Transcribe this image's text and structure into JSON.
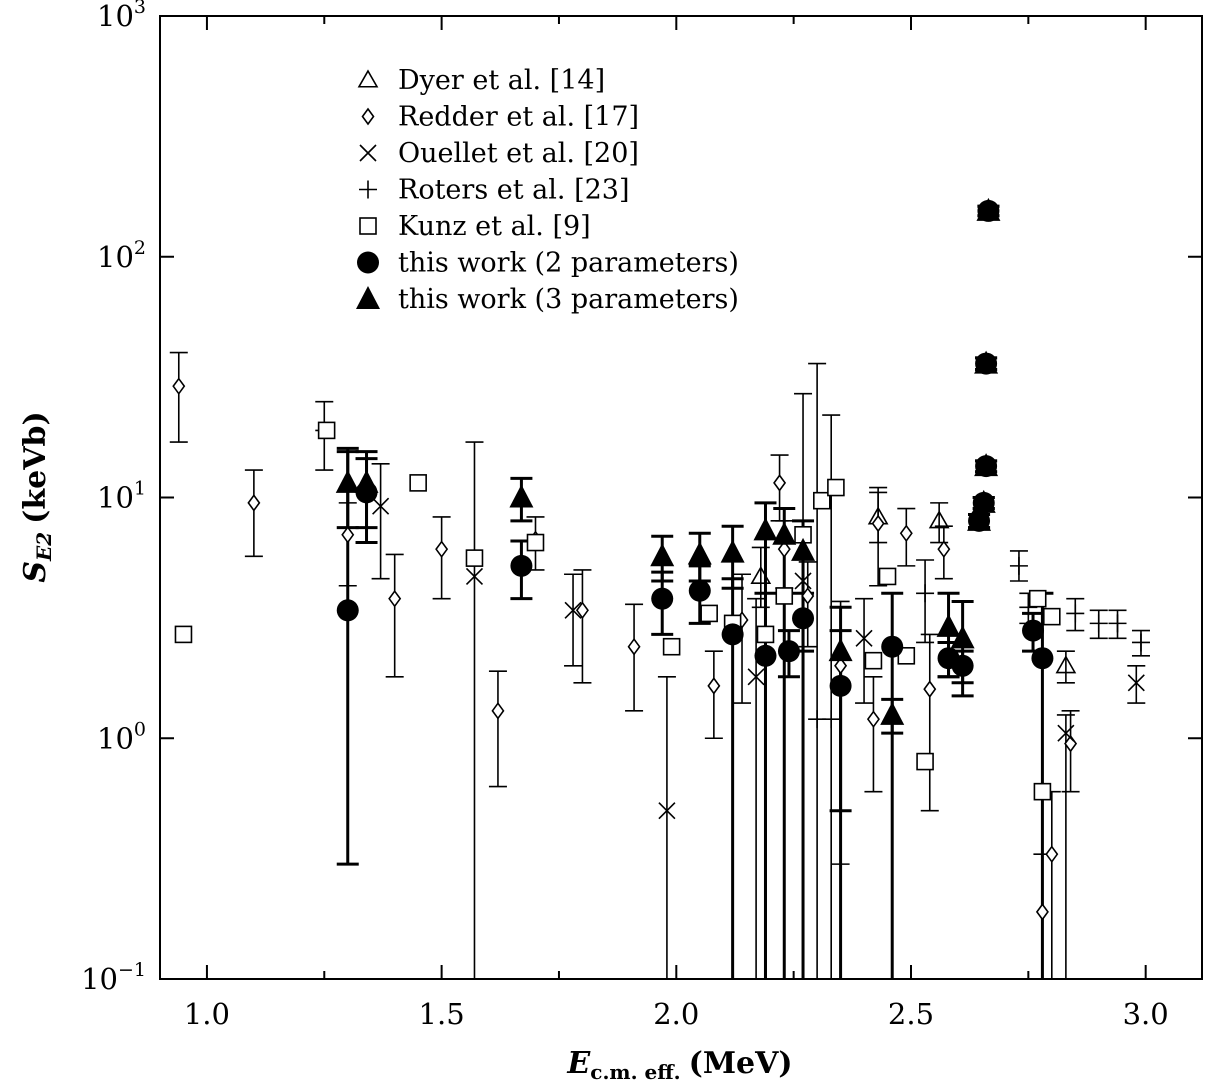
{
  "chart_data": {
    "type": "scatter",
    "xlabel": {
      "main": "E",
      "sub": "c.m. eff.",
      "unit": "(MeV)"
    },
    "ylabel": {
      "main": "S",
      "sub": "E2",
      "unit": "(keVb)"
    },
    "xlim": [
      0.9,
      3.12
    ],
    "ylim": [
      0.1,
      1000
    ],
    "yscale": "log",
    "grid": false,
    "legend_position": "top-left",
    "x_ticks": [
      {
        "value": 1.0,
        "label": "1.0"
      },
      {
        "value": 1.5,
        "label": "1.5"
      },
      {
        "value": 2.0,
        "label": "2.0"
      },
      {
        "value": 2.5,
        "label": "2.5"
      },
      {
        "value": 3.0,
        "label": "3.0"
      }
    ],
    "y_ticks": [
      {
        "value": 0.1,
        "base": "10",
        "exp": "−1"
      },
      {
        "value": 1,
        "base": "10",
        "exp": "0"
      },
      {
        "value": 10,
        "base": "10",
        "exp": "1"
      },
      {
        "value": 100,
        "base": "10",
        "exp": "2"
      },
      {
        "value": 1000,
        "base": "10",
        "exp": "3"
      }
    ],
    "series": [
      {
        "name": "Dyer et al. [14]",
        "marker": "triangle-open",
        "points": [
          [
            2.18,
            4.7,
            3.5,
            6.2
          ],
          [
            2.43,
            8.3,
            6.5,
            10.5
          ],
          [
            2.56,
            8.0,
            6.5,
            9.5
          ],
          [
            2.83,
            2.0,
            1.7,
            2.3
          ]
        ]
      },
      {
        "name": "Redder et al. [17]",
        "marker": "diamond-open",
        "points": [
          [
            0.94,
            29,
            17,
            40
          ],
          [
            1.1,
            9.5,
            5.7,
            13
          ],
          [
            1.3,
            7.0,
            4.3,
            9.5
          ],
          [
            1.4,
            3.8,
            1.8,
            5.8
          ],
          [
            1.5,
            6.1,
            3.8,
            8.3
          ],
          [
            1.62,
            1.3,
            0.63,
            1.9
          ],
          [
            1.7,
            6.7,
            5.0,
            8.3
          ],
          [
            1.8,
            3.4,
            1.7,
            5.0
          ],
          [
            1.91,
            2.4,
            1.3,
            3.6
          ],
          [
            2.08,
            1.65,
            1.0,
            2.3
          ],
          [
            2.14,
            3.1,
            1.4,
            4.8
          ],
          [
            2.22,
            11.5,
            8.0,
            15
          ],
          [
            2.23,
            6.1,
            4.2,
            8.0
          ],
          [
            2.28,
            3.9,
            2.4,
            5.4
          ],
          [
            2.35,
            2.0,
            0.3,
            3.7
          ],
          [
            2.42,
            1.2,
            0.6,
            1.8
          ],
          [
            2.43,
            7.8,
            4.3,
            11
          ],
          [
            2.49,
            7.1,
            5.2,
            9.0
          ],
          [
            2.54,
            1.6,
            0.5,
            2.7
          ],
          [
            2.57,
            6.1,
            4.6,
            7.6
          ],
          [
            2.78,
            0.19,
            0.05,
            0.33
          ],
          [
            2.8,
            0.33,
            0.05,
            0.6
          ],
          [
            2.84,
            0.95,
            0.6,
            1.3
          ]
        ]
      },
      {
        "name": "Ouellet et al. [20]",
        "marker": "cross",
        "points": [
          [
            1.37,
            9.2,
            4.6,
            13.8
          ],
          [
            1.57,
            4.7,
            0.05,
            17
          ],
          [
            1.78,
            3.4,
            2.0,
            4.8
          ],
          [
            1.98,
            0.5,
            0.05,
            1.8
          ],
          [
            2.17,
            1.8,
            0.05,
            3.8
          ],
          [
            2.27,
            4.5,
            0.05,
            27
          ],
          [
            2.4,
            2.6,
            1.4,
            3.8
          ],
          [
            2.83,
            1.05,
            0.05,
            1.25
          ],
          [
            2.98,
            1.7,
            1.4,
            2.0
          ]
        ]
      },
      {
        "name": "Roters et al. [23]",
        "marker": "plus",
        "points": [
          [
            1.25,
            19,
            13,
            25
          ],
          [
            2.3,
            1.2,
            0.05,
            36
          ],
          [
            2.33,
            1.2,
            0.05,
            22
          ],
          [
            2.53,
            4.0,
            2.5,
            5.5
          ],
          [
            2.73,
            5.2,
            4.5,
            6.0
          ],
          [
            2.75,
            3.5,
            3.0,
            4.0
          ],
          [
            2.85,
            3.3,
            2.8,
            3.8
          ],
          [
            2.9,
            3.0,
            2.6,
            3.4
          ],
          [
            2.94,
            3.0,
            2.6,
            3.4
          ],
          [
            2.99,
            2.5,
            2.2,
            2.8
          ]
        ]
      },
      {
        "name": "Kunz et al. [9]",
        "marker": "square-open",
        "points": [
          [
            0.95,
            2.7
          ],
          [
            1.255,
            19
          ],
          [
            1.45,
            11.5
          ],
          [
            1.57,
            5.6
          ],
          [
            1.7,
            6.5
          ],
          [
            1.99,
            2.4
          ],
          [
            2.07,
            3.3
          ],
          [
            2.12,
            3.0
          ],
          [
            2.19,
            2.7
          ],
          [
            2.23,
            3.9
          ],
          [
            2.27,
            7.0
          ],
          [
            2.31,
            9.7
          ],
          [
            2.34,
            11
          ],
          [
            2.42,
            2.1
          ],
          [
            2.45,
            4.7
          ],
          [
            2.49,
            2.2
          ],
          [
            2.53,
            0.8
          ],
          [
            2.77,
            3.8
          ],
          [
            2.78,
            0.6
          ],
          [
            2.8,
            3.2
          ]
        ]
      },
      {
        "name": "this work (2 parameters)",
        "marker": "circle-filled",
        "points": [
          [
            1.3,
            3.4,
            0.3,
            16
          ],
          [
            1.34,
            10.5,
            6.5,
            14.5
          ],
          [
            1.67,
            5.2,
            3.8,
            6.6
          ],
          [
            1.97,
            3.8,
            2.7,
            4.9
          ],
          [
            2.05,
            4.1,
            3.0,
            5.2
          ],
          [
            2.12,
            2.7,
            0.05,
            4.6
          ],
          [
            2.19,
            2.2,
            0.05,
            4.0
          ],
          [
            2.24,
            2.3,
            1.8,
            2.8
          ],
          [
            2.27,
            3.15,
            2.3,
            4.0
          ],
          [
            2.35,
            1.65,
            0.5,
            2.8
          ],
          [
            2.46,
            2.4,
            0.05,
            4.0
          ],
          [
            2.58,
            2.15,
            1.8,
            2.5
          ],
          [
            2.61,
            2.0,
            1.7,
            2.3
          ],
          [
            2.645,
            8.0,
            7.5,
            8.5
          ],
          [
            2.655,
            9.5,
            9.0,
            10.0
          ],
          [
            2.66,
            13.5,
            12.8,
            14.2
          ],
          [
            2.66,
            36,
            34,
            38
          ],
          [
            2.665,
            155,
            148,
            162
          ],
          [
            2.76,
            2.8,
            2.3,
            3.3
          ],
          [
            2.78,
            2.15,
            0.05,
            4.0
          ]
        ]
      },
      {
        "name": "this work (3 parameters)",
        "marker": "triangle-filled",
        "points": [
          [
            1.3,
            11.5,
            7.5,
            15.5
          ],
          [
            1.34,
            11.5,
            7.5,
            15.5
          ],
          [
            1.67,
            10.0,
            8.0,
            12.0
          ],
          [
            1.97,
            5.7,
            4.5,
            6.9
          ],
          [
            2.05,
            5.8,
            4.5,
            7.1
          ],
          [
            2.12,
            5.9,
            4.2,
            7.6
          ],
          [
            2.19,
            7.3,
            0.05,
            9.5
          ],
          [
            2.23,
            7.0,
            0.05,
            9.0
          ],
          [
            2.27,
            6.0,
            0.05,
            8.0
          ],
          [
            2.35,
            2.3,
            0.05,
            3.5
          ],
          [
            2.46,
            1.25,
            1.05,
            1.45
          ],
          [
            2.58,
            2.9,
            1.8,
            4.0
          ],
          [
            2.61,
            2.6,
            1.5,
            3.7
          ],
          [
            2.645,
            8.0,
            7.5,
            8.5
          ],
          [
            2.655,
            9.5,
            9.0,
            10.0
          ],
          [
            2.66,
            13.5,
            12.8,
            14.2
          ],
          [
            2.66,
            36,
            34,
            38
          ],
          [
            2.665,
            155,
            148,
            162
          ]
        ]
      }
    ]
  }
}
